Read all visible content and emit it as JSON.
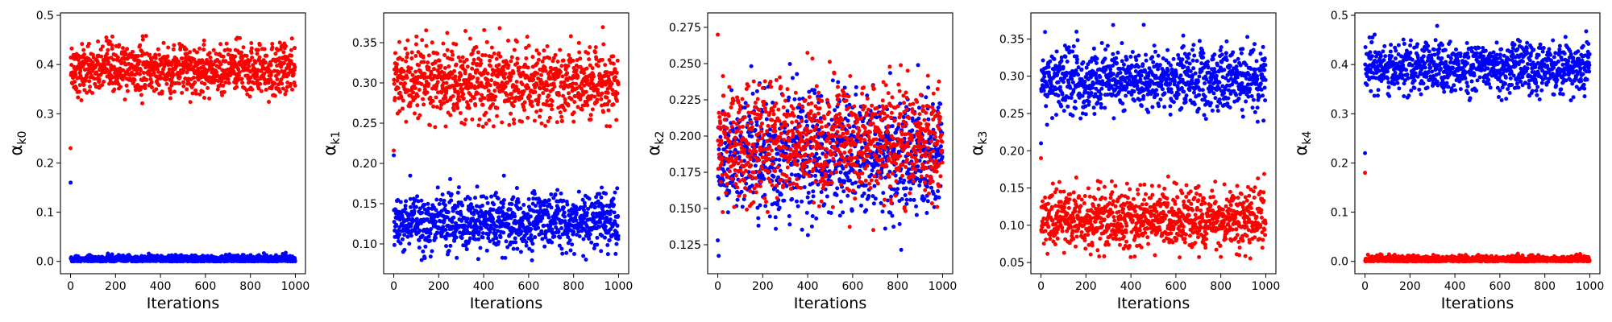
{
  "colors": {
    "red": "#ff0000",
    "blue": "#0000ff",
    "axis": "#000000",
    "background": "#ffffff"
  },
  "chart_data": [
    {
      "type": "scatter",
      "xlabel": "Iterations",
      "ylabel_symbol": "α",
      "ylabel_subscript": "k0",
      "xlim": [
        -45,
        1045
      ],
      "ylim": [
        -0.025,
        0.505
      ],
      "xticks": [
        0,
        200,
        400,
        600,
        800,
        1000
      ],
      "yticks": [
        0.0,
        0.1,
        0.2,
        0.3,
        0.4,
        0.5
      ],
      "ytick_labels": [
        "0.0",
        "0.1",
        "0.2",
        "0.3",
        "0.4",
        "0.5"
      ],
      "grid": false,
      "n_iterations": 1000,
      "series": [
        {
          "color": "red",
          "start": 0.23,
          "mean": 0.39,
          "spread": 0.025,
          "min": 0.3,
          "max": 0.485
        },
        {
          "color": "blue",
          "start": 0.16,
          "mean": 0.004,
          "spread": 0.004,
          "min": 0.0,
          "max": 0.022
        }
      ]
    },
    {
      "type": "scatter",
      "xlabel": "Iterations",
      "ylabel_symbol": "α",
      "ylabel_subscript": "k1",
      "xlim": [
        -45,
        1045
      ],
      "ylim": [
        0.063,
        0.387
      ],
      "xticks": [
        0,
        200,
        400,
        600,
        800,
        1000
      ],
      "yticks": [
        0.1,
        0.15,
        0.2,
        0.25,
        0.3,
        0.35
      ],
      "ytick_labels": [
        "0.10",
        "0.15",
        "0.20",
        "0.25",
        "0.30",
        "0.35"
      ],
      "grid": false,
      "n_iterations": 1000,
      "series": [
        {
          "color": "red",
          "start": 0.216,
          "mean": 0.3,
          "spread": 0.022,
          "min": 0.245,
          "max": 0.373
        },
        {
          "color": "blue",
          "start": 0.21,
          "mean": 0.127,
          "spread": 0.017,
          "min": 0.078,
          "max": 0.185
        }
      ]
    },
    {
      "type": "scatter",
      "xlabel": "Iterations",
      "ylabel_symbol": "α",
      "ylabel_subscript": "k2",
      "xlim": [
        -45,
        1045
      ],
      "ylim": [
        0.105,
        0.285
      ],
      "xticks": [
        0,
        200,
        400,
        600,
        800,
        1000
      ],
      "yticks": [
        0.125,
        0.15,
        0.175,
        0.2,
        0.225,
        0.25,
        0.275
      ],
      "ytick_labels": [
        "0.125",
        "0.150",
        "0.175",
        "0.200",
        "0.225",
        "0.250",
        "0.275"
      ],
      "grid": false,
      "n_iterations": 1000,
      "series": [
        {
          "color": "blue",
          "start": 0.128,
          "mean": 0.187,
          "spread": 0.02,
          "min": 0.112,
          "max": 0.262
        },
        {
          "color": "red",
          "start": 0.27,
          "mean": 0.196,
          "spread": 0.02,
          "min": 0.135,
          "max": 0.278
        }
      ]
    },
    {
      "type": "scatter",
      "xlabel": "Iterations",
      "ylabel_symbol": "α",
      "ylabel_subscript": "k3",
      "xlim": [
        -45,
        1045
      ],
      "ylim": [
        0.035,
        0.385
      ],
      "xticks": [
        0,
        200,
        400,
        600,
        800,
        1000
      ],
      "yticks": [
        0.05,
        0.1,
        0.15,
        0.2,
        0.25,
        0.3,
        0.35
      ],
      "ytick_labels": [
        "0.05",
        "0.10",
        "0.15",
        "0.20",
        "0.25",
        "0.30",
        "0.35"
      ],
      "grid": false,
      "n_iterations": 1000,
      "series": [
        {
          "color": "blue",
          "start": 0.21,
          "mean": 0.295,
          "spread": 0.022,
          "min": 0.232,
          "max": 0.372
        },
        {
          "color": "red",
          "start": 0.19,
          "mean": 0.108,
          "spread": 0.02,
          "min": 0.055,
          "max": 0.175
        }
      ]
    },
    {
      "type": "scatter",
      "xlabel": "Iterations",
      "ylabel_symbol": "α",
      "ylabel_subscript": "k4",
      "xlim": [
        -45,
        1045
      ],
      "ylim": [
        -0.025,
        0.505
      ],
      "xticks": [
        0,
        200,
        400,
        600,
        800,
        1000
      ],
      "yticks": [
        0.0,
        0.1,
        0.2,
        0.3,
        0.4,
        0.5
      ],
      "ytick_labels": [
        "0.0",
        "0.1",
        "0.2",
        "0.3",
        "0.4",
        "0.5"
      ],
      "grid": false,
      "n_iterations": 1000,
      "series": [
        {
          "color": "blue",
          "start": 0.22,
          "mean": 0.392,
          "spread": 0.025,
          "min": 0.32,
          "max": 0.485
        },
        {
          "color": "red",
          "start": 0.18,
          "mean": 0.004,
          "spread": 0.004,
          "min": 0.0,
          "max": 0.022
        }
      ]
    }
  ]
}
